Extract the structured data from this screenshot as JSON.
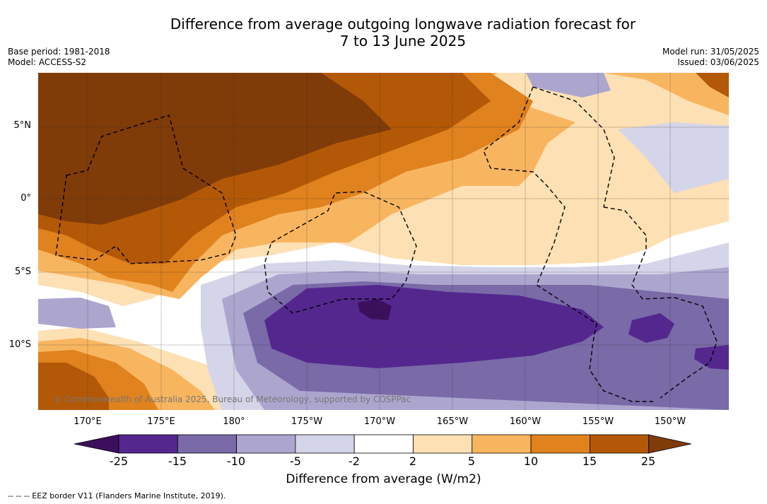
{
  "title_line1": "Difference from average outgoing longwave radiation forecast for",
  "title_line2": "7 to 13 June 2025",
  "base_period": "Base period: 1981-2018",
  "model": "Model: ACCESS-S2",
  "model_run": "Model run: 31/05/2025",
  "issued": "Issued: 03/06/2025",
  "copyright": "© Commonwealth of Australia 2025, Bureau of Meteorology, supported by COSPPac",
  "footer": "--  --  -- EEZ border V11 (Flanders Marine Institute, 2019).",
  "lat_labels": [
    "5°N",
    "0°",
    "5°S",
    "10°S"
  ],
  "lon_labels": [
    "170°E",
    "175°E",
    "180°",
    "175°W",
    "170°W",
    "165°W",
    "160°W",
    "155°W",
    "150°W"
  ],
  "colorbar": {
    "label": "Difference from average (W/m2)",
    "ticks": [
      "-25",
      "-15",
      "-10",
      "-5",
      "-2",
      "2",
      "5",
      "10",
      "15",
      "25"
    ],
    "colors": [
      "#3b0f5c",
      "#54278f",
      "#7a6aa8",
      "#aca6cf",
      "#d5d5e9",
      "#ffffff",
      "#fde0b3",
      "#f8b560",
      "#e0821d",
      "#b35806",
      "#7f3b08"
    ]
  }
}
